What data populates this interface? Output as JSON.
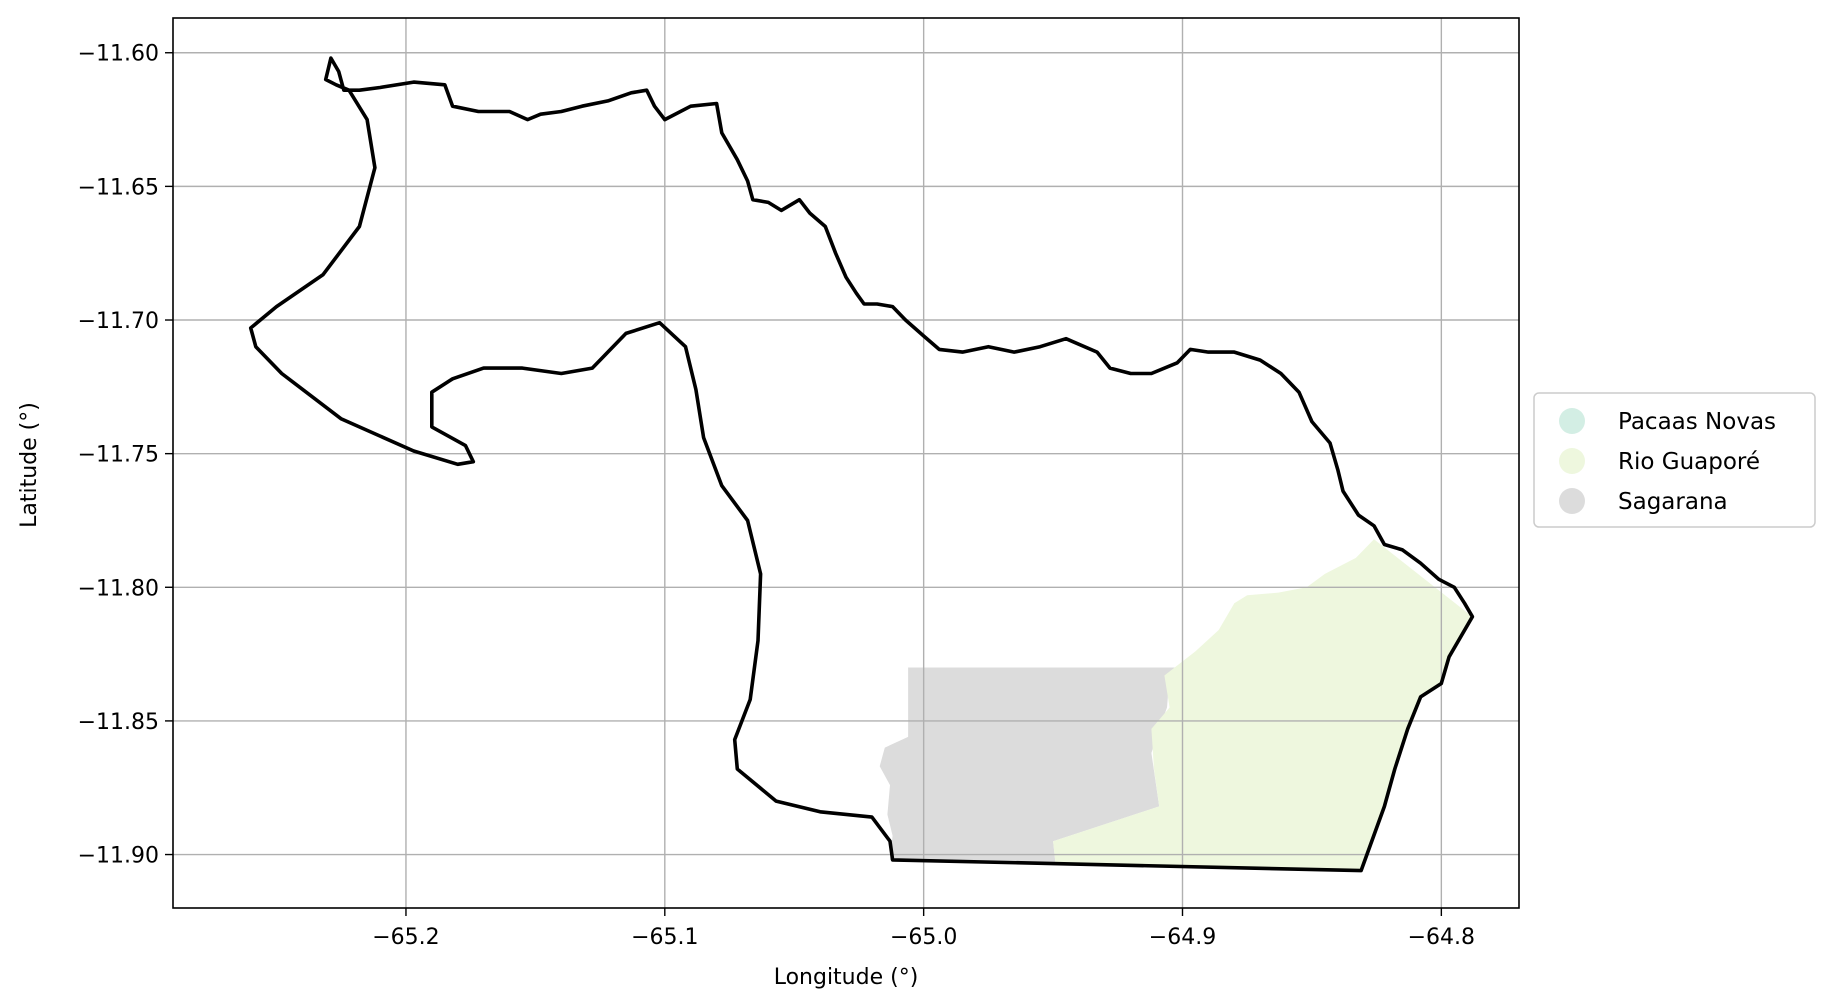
{
  "map": {
    "xlabel": "Longitude (°)",
    "ylabel": "Latitude (°)",
    "xlim": [
      -65.29,
      -64.77
    ],
    "ylim": [
      -11.92,
      -11.587
    ],
    "x_ticks": [
      -65.2,
      -65.1,
      -65.0,
      -64.9,
      -64.8
    ],
    "y_ticks": [
      -11.6,
      -11.65,
      -11.7,
      -11.75,
      -11.8,
      -11.85,
      -11.9
    ],
    "x_tick_labels": [
      "−65.2",
      "−65.1",
      "−65.0",
      "−64.9",
      "−64.8"
    ],
    "y_tick_labels": [
      "−11.60",
      "−11.65",
      "−11.70",
      "−11.75",
      "−11.80",
      "−11.85",
      "−11.90"
    ],
    "grid": true,
    "legend": {
      "placement": "right",
      "entries": [
        {
          "label": "Pacaas Novas",
          "color": "#d3eee4"
        },
        {
          "label": "Rio Guaporé",
          "color": "#eef7de"
        },
        {
          "label": "Sagarana",
          "color": "#dcdcdc"
        }
      ]
    },
    "regions": [
      {
        "name": "Sagarana",
        "color": "#dcdcdc",
        "coords": [
          [
            -65.006,
            -11.83
          ],
          [
            -64.885,
            -11.83
          ],
          [
            -64.895,
            -11.834
          ],
          [
            -64.905,
            -11.833
          ],
          [
            -64.906,
            -11.845
          ],
          [
            -64.909,
            -11.853
          ],
          [
            -64.912,
            -11.862
          ],
          [
            -64.909,
            -11.882
          ],
          [
            -64.95,
            -11.895
          ],
          [
            -64.949,
            -11.904
          ],
          [
            -65.013,
            -11.902
          ],
          [
            -65.012,
            -11.893
          ],
          [
            -65.014,
            -11.885
          ],
          [
            -65.013,
            -11.874
          ],
          [
            -65.017,
            -11.867
          ],
          [
            -65.015,
            -11.86
          ],
          [
            -65.006,
            -11.856
          ]
        ]
      },
      {
        "name": "Rio Guaporé",
        "color": "#eef7de",
        "coords": [
          [
            -64.826,
            -11.782
          ],
          [
            -64.833,
            -11.789
          ],
          [
            -64.845,
            -11.795
          ],
          [
            -64.852,
            -11.8
          ],
          [
            -64.863,
            -11.802
          ],
          [
            -64.875,
            -11.803
          ],
          [
            -64.88,
            -11.806
          ],
          [
            -64.886,
            -11.816
          ],
          [
            -64.895,
            -11.824
          ],
          [
            -64.907,
            -11.833
          ],
          [
            -64.905,
            -11.845
          ],
          [
            -64.912,
            -11.853
          ],
          [
            -64.911,
            -11.868
          ],
          [
            -64.909,
            -11.882
          ],
          [
            -64.95,
            -11.895
          ],
          [
            -64.949,
            -11.904
          ],
          [
            -64.831,
            -11.906
          ],
          [
            -64.822,
            -11.882
          ],
          [
            -64.818,
            -11.868
          ],
          [
            -64.813,
            -11.853
          ],
          [
            -64.808,
            -11.841
          ],
          [
            -64.8,
            -11.836
          ],
          [
            -64.797,
            -11.826
          ],
          [
            -64.788,
            -11.811
          ]
        ]
      }
    ],
    "boundary": [
      [
        -64.831,
        -11.906
      ],
      [
        -65.012,
        -11.902
      ],
      [
        -65.013,
        -11.895
      ],
      [
        -65.02,
        -11.886
      ],
      [
        -65.04,
        -11.884
      ],
      [
        -65.057,
        -11.88
      ],
      [
        -65.072,
        -11.868
      ],
      [
        -65.073,
        -11.857
      ],
      [
        -65.067,
        -11.842
      ],
      [
        -65.064,
        -11.82
      ],
      [
        -65.063,
        -11.795
      ],
      [
        -65.068,
        -11.775
      ],
      [
        -65.078,
        -11.762
      ],
      [
        -65.085,
        -11.744
      ],
      [
        -65.088,
        -11.726
      ],
      [
        -65.092,
        -11.71
      ],
      [
        -65.102,
        -11.701
      ],
      [
        -65.115,
        -11.705
      ],
      [
        -65.128,
        -11.718
      ],
      [
        -65.14,
        -11.72
      ],
      [
        -65.155,
        -11.718
      ],
      [
        -65.17,
        -11.718
      ],
      [
        -65.182,
        -11.722
      ],
      [
        -65.19,
        -11.727
      ],
      [
        -65.19,
        -11.74
      ],
      [
        -65.177,
        -11.747
      ],
      [
        -65.174,
        -11.753
      ],
      [
        -65.18,
        -11.754
      ],
      [
        -65.197,
        -11.749
      ],
      [
        -65.225,
        -11.737
      ],
      [
        -65.248,
        -11.72
      ],
      [
        -65.258,
        -11.71
      ],
      [
        -65.26,
        -11.703
      ],
      [
        -65.25,
        -11.695
      ],
      [
        -65.232,
        -11.683
      ],
      [
        -65.218,
        -11.665
      ],
      [
        -65.212,
        -11.643
      ],
      [
        -65.215,
        -11.625
      ],
      [
        -65.222,
        -11.614
      ],
      [
        -65.227,
        -11.612
      ],
      [
        -65.231,
        -11.61
      ],
      [
        -65.229,
        -11.602
      ],
      [
        -65.226,
        -11.607
      ],
      [
        -65.224,
        -11.614
      ],
      [
        -65.218,
        -11.614
      ],
      [
        -65.21,
        -11.613
      ],
      [
        -65.197,
        -11.611
      ],
      [
        -65.185,
        -11.612
      ],
      [
        -65.182,
        -11.62
      ],
      [
        -65.172,
        -11.622
      ],
      [
        -65.16,
        -11.622
      ],
      [
        -65.153,
        -11.625
      ],
      [
        -65.148,
        -11.623
      ],
      [
        -65.14,
        -11.622
      ],
      [
        -65.132,
        -11.62
      ],
      [
        -65.122,
        -11.618
      ],
      [
        -65.113,
        -11.615
      ],
      [
        -65.107,
        -11.614
      ],
      [
        -65.104,
        -11.62
      ],
      [
        -65.1,
        -11.625
      ],
      [
        -65.09,
        -11.62
      ],
      [
        -65.08,
        -11.619
      ],
      [
        -65.078,
        -11.63
      ],
      [
        -65.072,
        -11.64
      ],
      [
        -65.068,
        -11.648
      ],
      [
        -65.066,
        -11.655
      ],
      [
        -65.06,
        -11.656
      ],
      [
        -65.055,
        -11.659
      ],
      [
        -65.048,
        -11.655
      ],
      [
        -65.044,
        -11.66
      ],
      [
        -65.038,
        -11.665
      ],
      [
        -65.034,
        -11.675
      ],
      [
        -65.03,
        -11.684
      ],
      [
        -65.026,
        -11.69
      ],
      [
        -65.023,
        -11.694
      ],
      [
        -65.018,
        -11.694
      ],
      [
        -65.012,
        -11.695
      ],
      [
        -65.007,
        -11.7
      ],
      [
        -65.0,
        -11.706
      ],
      [
        -64.994,
        -11.711
      ],
      [
        -64.985,
        -11.712
      ],
      [
        -64.975,
        -11.71
      ],
      [
        -64.965,
        -11.712
      ],
      [
        -64.955,
        -11.71
      ],
      [
        -64.945,
        -11.707
      ],
      [
        -64.933,
        -11.712
      ],
      [
        -64.928,
        -11.718
      ],
      [
        -64.92,
        -11.72
      ],
      [
        -64.912,
        -11.72
      ],
      [
        -64.902,
        -11.716
      ],
      [
        -64.897,
        -11.711
      ],
      [
        -64.89,
        -11.712
      ],
      [
        -64.88,
        -11.712
      ],
      [
        -64.87,
        -11.715
      ],
      [
        -64.862,
        -11.72
      ],
      [
        -64.855,
        -11.727
      ],
      [
        -64.85,
        -11.738
      ],
      [
        -64.843,
        -11.746
      ],
      [
        -64.84,
        -11.756
      ],
      [
        -64.838,
        -11.764
      ],
      [
        -64.832,
        -11.773
      ],
      [
        -64.826,
        -11.777
      ],
      [
        -64.822,
        -11.784
      ],
      [
        -64.815,
        -11.786
      ],
      [
        -64.808,
        -11.791
      ],
      [
        -64.801,
        -11.797
      ],
      [
        -64.795,
        -11.8
      ],
      [
        -64.791,
        -11.806
      ],
      [
        -64.788,
        -11.811
      ],
      [
        -64.797,
        -11.826
      ],
      [
        -64.8,
        -11.836
      ],
      [
        -64.808,
        -11.841
      ],
      [
        -64.813,
        -11.853
      ],
      [
        -64.818,
        -11.868
      ],
      [
        -64.822,
        -11.882
      ],
      [
        -64.831,
        -11.906
      ]
    ]
  }
}
